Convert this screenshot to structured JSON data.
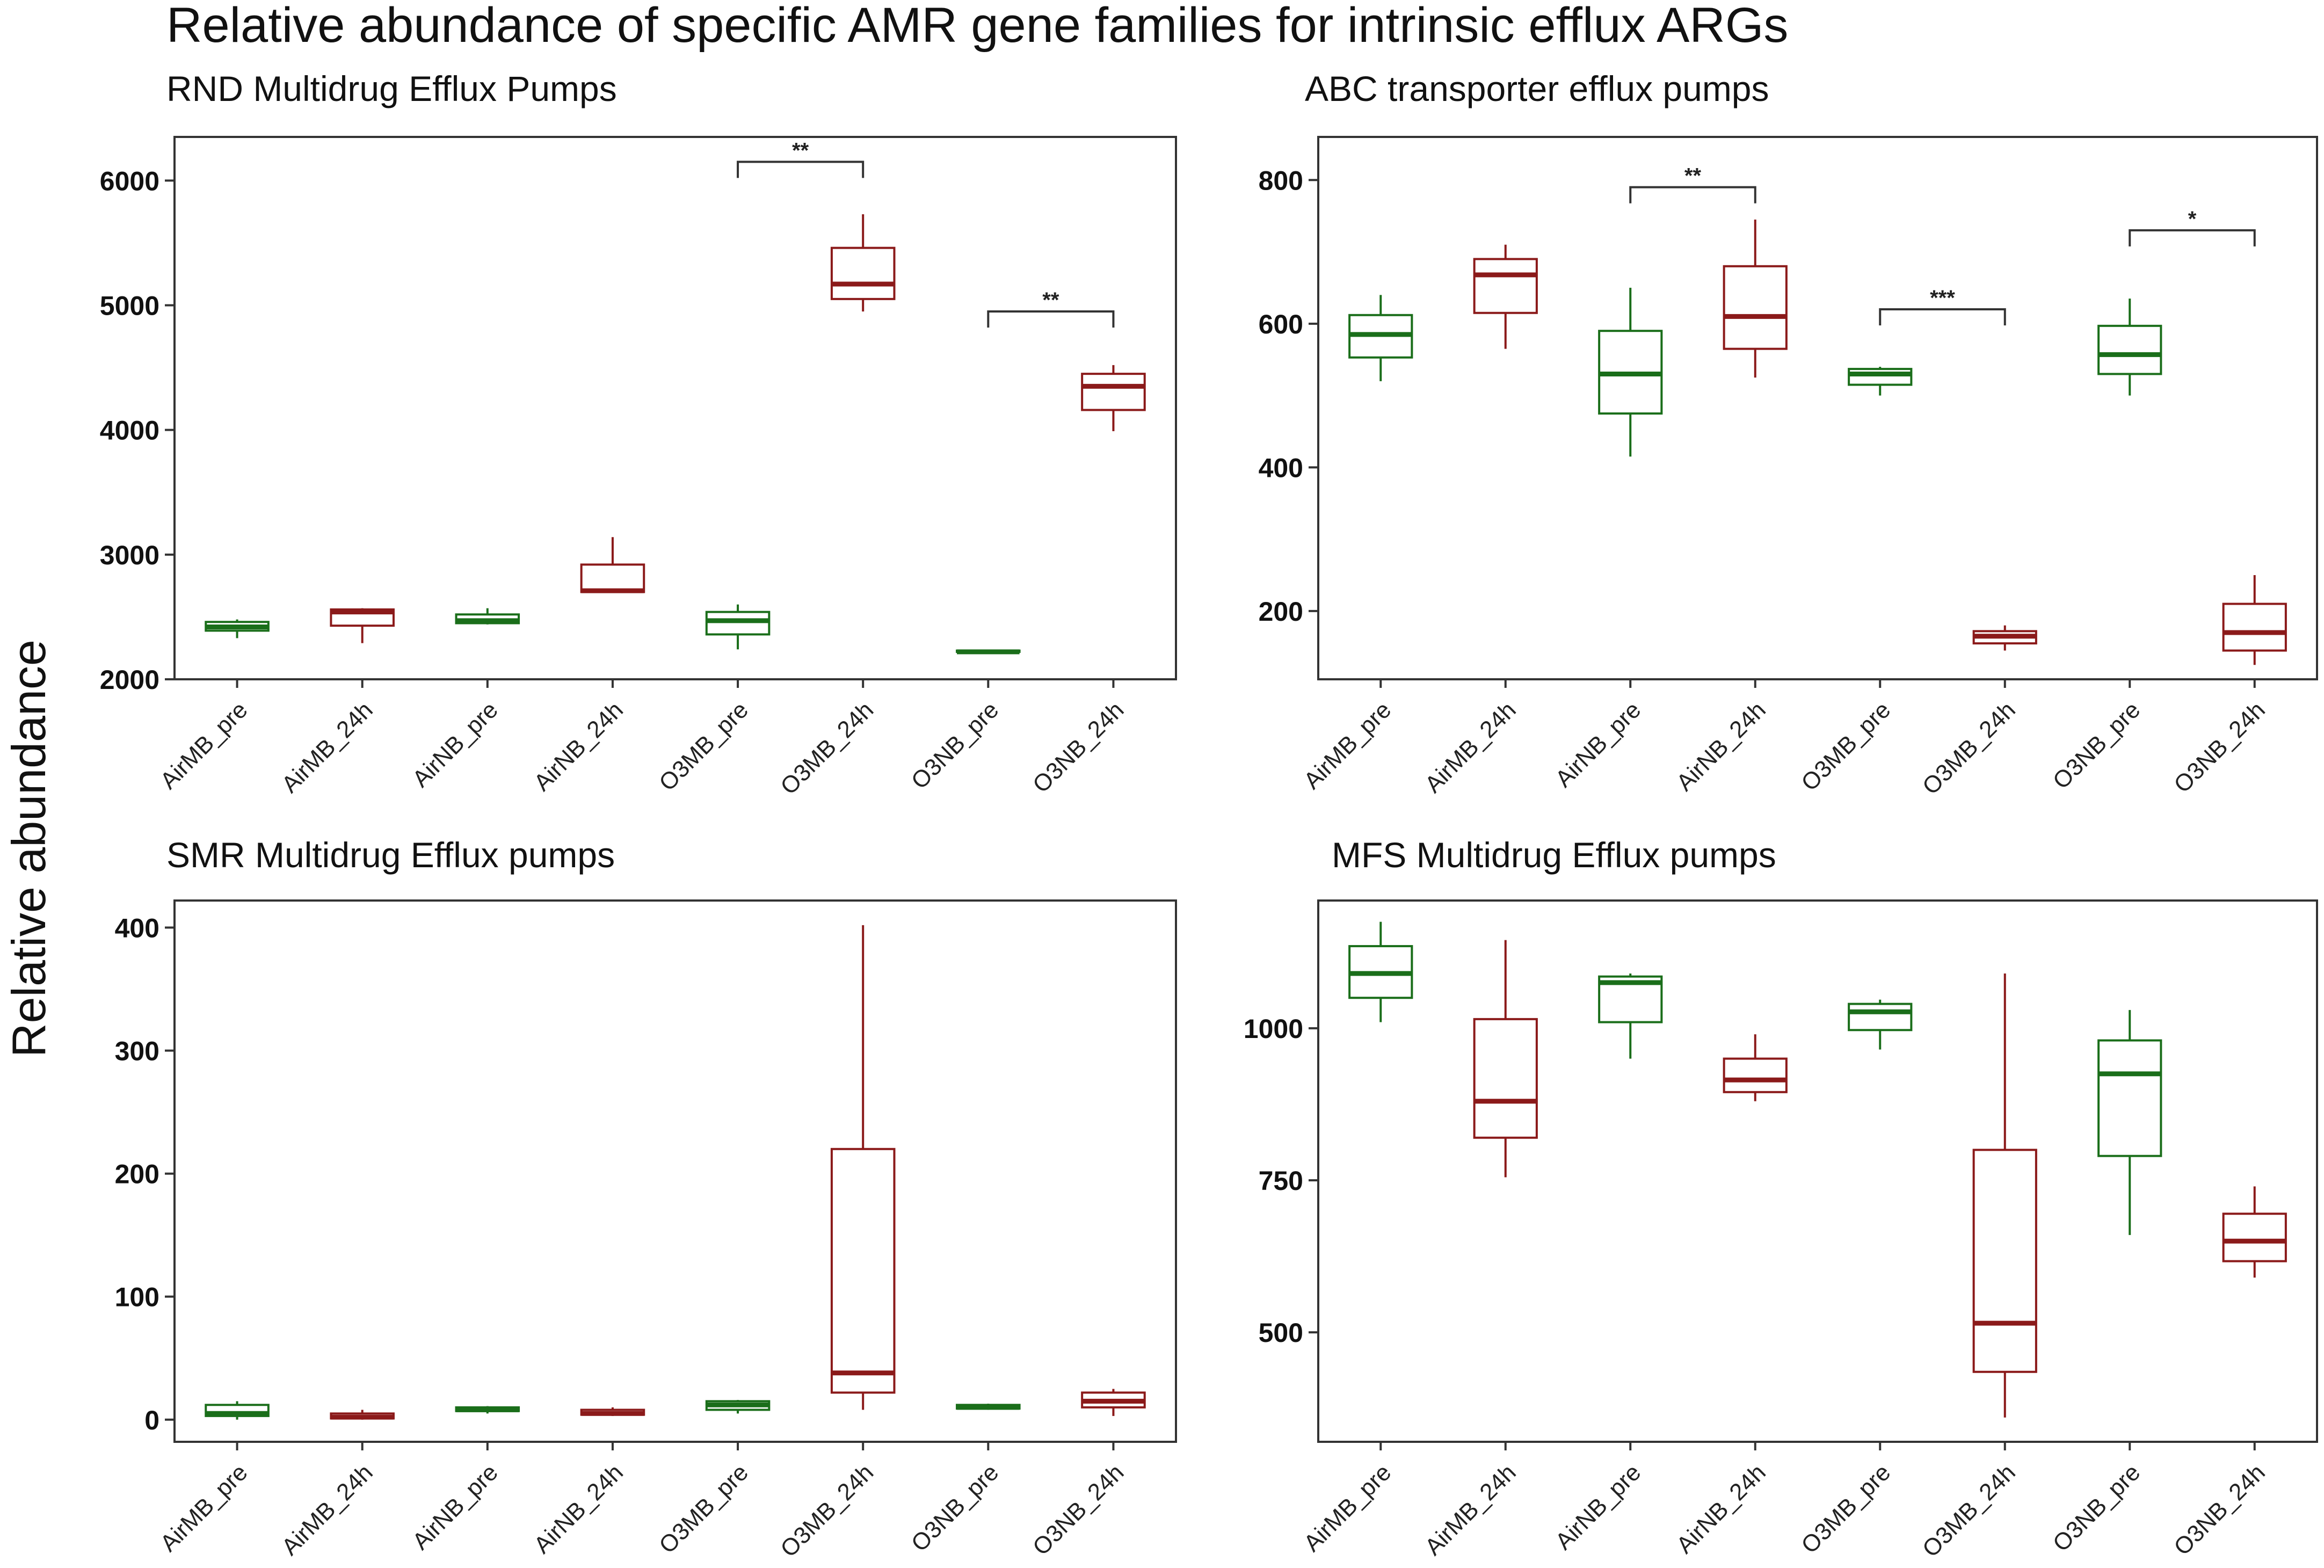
{
  "figure_title": "Relative abundance of specific AMR gene families for intrinsic efflux ARGs",
  "shared_ylabel": "Relative abundance",
  "colors": {
    "pre": "#1a6e1a",
    "h24": "#8b1a1a",
    "axis": "#333333"
  },
  "chart_data": [
    {
      "type": "box",
      "title": "RND Multidrug Efflux Pumps",
      "categories": [
        "AirMB_pre",
        "AirMB_24h",
        "AirNB_pre",
        "AirNB_24h",
        "O3MB_pre",
        "O3MB_24h",
        "O3NB_pre",
        "O3NB_24h"
      ],
      "groups": [
        "pre",
        "24h",
        "pre",
        "24h",
        "pre",
        "24h",
        "pre",
        "24h"
      ],
      "ylim": [
        2000,
        6350
      ],
      "yticks": [
        2000,
        3000,
        4000,
        5000,
        6000
      ],
      "boxes": [
        {
          "min": 2330,
          "q1": 2390,
          "median": 2420,
          "q3": 2460,
          "max": 2480
        },
        {
          "min": 2290,
          "q1": 2430,
          "median": 2540,
          "q3": 2560,
          "max": 2570
        },
        {
          "min": 2440,
          "q1": 2450,
          "median": 2470,
          "q3": 2520,
          "max": 2570
        },
        {
          "min": 2700,
          "q1": 2700,
          "median": 2710,
          "q3": 2920,
          "max": 3140
        },
        {
          "min": 2240,
          "q1": 2360,
          "median": 2470,
          "q3": 2540,
          "max": 2600
        },
        {
          "min": 4950,
          "q1": 5050,
          "median": 5170,
          "q3": 5460,
          "max": 5730
        },
        {
          "min": 2220,
          "q1": 2220,
          "median": 2220,
          "q3": 2230,
          "max": 2230
        },
        {
          "min": 3990,
          "q1": 4160,
          "median": 4350,
          "q3": 4450,
          "max": 4520
        }
      ],
      "significance": [
        {
          "from": 4,
          "to": 5,
          "label": "**",
          "y": 6150
        },
        {
          "from": 6,
          "to": 7,
          "label": "**",
          "y": 4950
        }
      ]
    },
    {
      "type": "box",
      "title": "ABC transporter  efflux pumps",
      "categories": [
        "AirMB_pre",
        "AirMB_24h",
        "AirNB_pre",
        "AirNB_24h",
        "O3MB_pre",
        "O3MB_24h",
        "O3NB_pre",
        "O3NB_24h"
      ],
      "groups": [
        "pre",
        "24h",
        "pre",
        "24h",
        "pre",
        "24h",
        "pre",
        "24h"
      ],
      "ylim": [
        105,
        860
      ],
      "yticks": [
        200,
        400,
        600,
        800
      ],
      "boxes": [
        {
          "min": 520,
          "q1": 553,
          "median": 585,
          "q3": 612,
          "max": 640
        },
        {
          "min": 565,
          "q1": 615,
          "median": 668,
          "q3": 690,
          "max": 710
        },
        {
          "min": 415,
          "q1": 475,
          "median": 530,
          "q3": 590,
          "max": 650
        },
        {
          "min": 525,
          "q1": 565,
          "median": 610,
          "q3": 680,
          "max": 745
        },
        {
          "min": 500,
          "q1": 515,
          "median": 530,
          "q3": 537,
          "max": 540
        },
        {
          "min": 145,
          "q1": 155,
          "median": 165,
          "q3": 172,
          "max": 180
        },
        {
          "min": 500,
          "q1": 530,
          "median": 557,
          "q3": 597,
          "max": 635
        },
        {
          "min": 125,
          "q1": 145,
          "median": 170,
          "q3": 210,
          "max": 250
        }
      ],
      "significance": [
        {
          "from": 2,
          "to": 3,
          "label": "**",
          "y": 790
        },
        {
          "from": 4,
          "to": 5,
          "label": "***",
          "y": 620
        },
        {
          "from": 6,
          "to": 7,
          "label": "*",
          "y": 730
        }
      ]
    },
    {
      "type": "box",
      "title": "SMR Multidrug Efflux pumps",
      "categories": [
        "AirMB_pre",
        "AirMB_24h",
        "AirNB_pre",
        "AirNB_24h",
        "O3MB_pre",
        "O3MB_24h",
        "O3NB_pre",
        "O3NB_24h"
      ],
      "groups": [
        "pre",
        "24h",
        "pre",
        "24h",
        "pre",
        "24h",
        "pre",
        "24h"
      ],
      "ylim": [
        -18,
        422
      ],
      "yticks": [
        0,
        100,
        200,
        300,
        400
      ],
      "boxes": [
        {
          "min": 0,
          "q1": 3,
          "median": 5,
          "q3": 12,
          "max": 15
        },
        {
          "min": 0,
          "q1": 1,
          "median": 2,
          "q3": 5,
          "max": 8
        },
        {
          "min": 5,
          "q1": 7,
          "median": 8,
          "q3": 10,
          "max": 11
        },
        {
          "min": 3,
          "q1": 4,
          "median": 5,
          "q3": 8,
          "max": 10
        },
        {
          "min": 5,
          "q1": 8,
          "median": 12,
          "q3": 15,
          "max": 16
        },
        {
          "min": 8,
          "q1": 22,
          "median": 38,
          "q3": 220,
          "max": 402
        },
        {
          "min": 8,
          "q1": 9,
          "median": 10,
          "q3": 12,
          "max": 13
        },
        {
          "min": 3,
          "q1": 10,
          "median": 15,
          "q3": 22,
          "max": 25
        }
      ],
      "significance": []
    },
    {
      "type": "box",
      "title": "MFS Multidrug Efflux pumps",
      "categories": [
        "AirMB_pre",
        "AirMB_24h",
        "AirNB_pre",
        "AirNB_24h",
        "O3MB_pre",
        "O3MB_24h",
        "O3NB_pre",
        "O3NB_24h"
      ],
      "groups": [
        "pre",
        "24h",
        "pre",
        "24h",
        "pre",
        "24h",
        "pre",
        "24h"
      ],
      "ylim": [
        320,
        1210
      ],
      "yticks": [
        500,
        750,
        1000
      ],
      "boxes": [
        {
          "min": 1010,
          "q1": 1050,
          "median": 1090,
          "q3": 1135,
          "max": 1175
        },
        {
          "min": 755,
          "q1": 820,
          "median": 880,
          "q3": 1015,
          "max": 1145
        },
        {
          "min": 950,
          "q1": 1010,
          "median": 1075,
          "q3": 1085,
          "max": 1090
        },
        {
          "min": 880,
          "q1": 895,
          "median": 915,
          "q3": 950,
          "max": 990
        },
        {
          "min": 965,
          "q1": 997,
          "median": 1027,
          "q3": 1040,
          "max": 1047
        },
        {
          "min": 360,
          "q1": 435,
          "median": 515,
          "q3": 800,
          "max": 1090
        },
        {
          "min": 660,
          "q1": 790,
          "median": 925,
          "q3": 980,
          "max": 1030
        },
        {
          "min": 590,
          "q1": 617,
          "median": 650,
          "q3": 695,
          "max": 740
        }
      ],
      "significance": []
    }
  ]
}
